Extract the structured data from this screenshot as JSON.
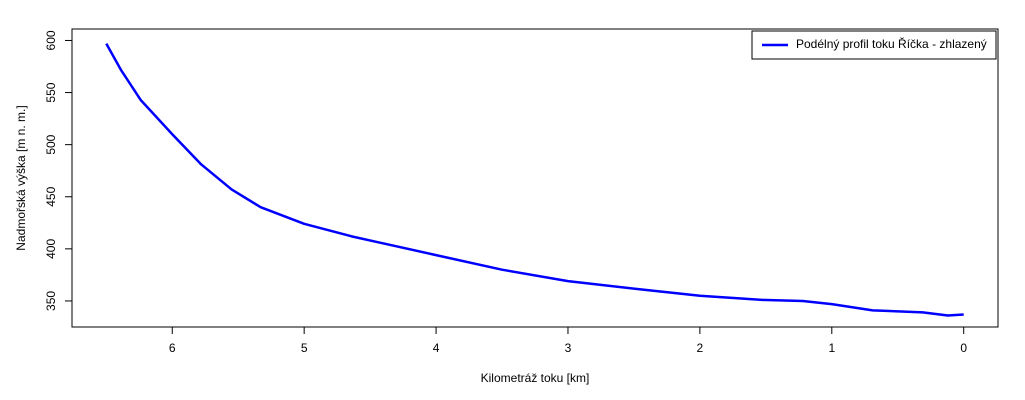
{
  "chart_data": {
    "type": "line",
    "xlabel": "Kilometráž toku [km]",
    "ylabel": "Nadmořská výška [m n. m.]",
    "x": [
      6.5,
      6.39,
      6.24,
      6.0,
      5.78,
      5.55,
      5.33,
      5.0,
      4.64,
      4.0,
      3.5,
      3.0,
      2.44,
      2.0,
      1.53,
      1.22,
      1.0,
      0.69,
      0.31,
      0.12,
      0
    ],
    "series": [
      {
        "name": "Podélný profil toku Říčka - zhlazený",
        "color": "#0000ff",
        "values": [
          597,
          572,
          543,
          510,
          481,
          457,
          440,
          424,
          412,
          394,
          380,
          369,
          361,
          355,
          351,
          350,
          347,
          341,
          339,
          336,
          337
        ]
      }
    ],
    "xlim": [
      6.76,
      -0.26
    ],
    "xticks": [
      6,
      5,
      4,
      3,
      2,
      1,
      0
    ],
    "ylim": [
      325,
      611
    ],
    "yticks": [
      350,
      400,
      450,
      500,
      550,
      600
    ],
    "legend": "top-right"
  }
}
